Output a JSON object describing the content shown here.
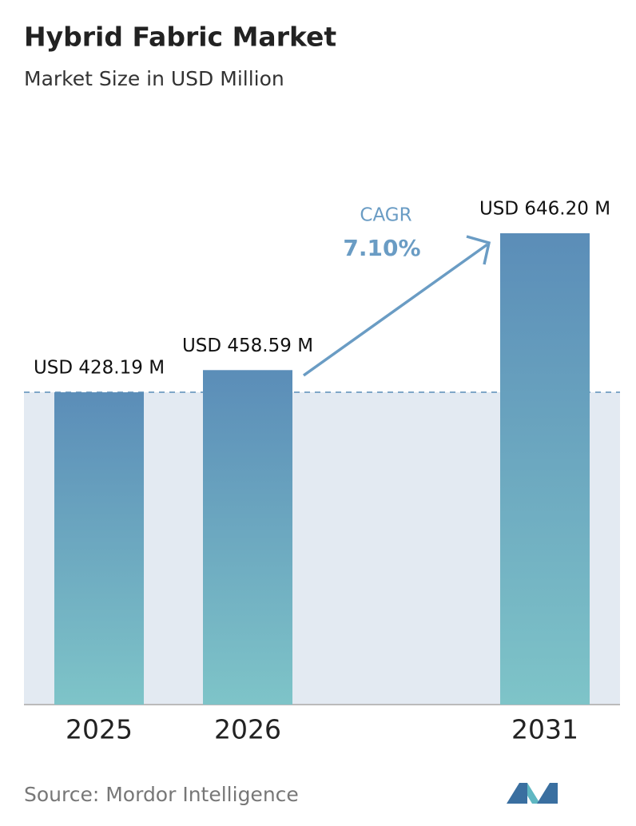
{
  "chart_data": {
    "type": "bar",
    "title": "Hybrid Fabric Market",
    "subtitle": "Market Size in USD Million",
    "categories": [
      "2025",
      "2026",
      "2031"
    ],
    "values": [
      428.19,
      458.59,
      646.2
    ],
    "value_labels": [
      "USD 428.19 M",
      "USD 458.59 M",
      "USD 646.20 M"
    ],
    "colors": [
      "#5b8db8",
      "#7ec4c8"
    ],
    "annotations": [
      "CAGR",
      "7.10%"
    ],
    "source": "Source: Mordor Intelligence"
  }
}
